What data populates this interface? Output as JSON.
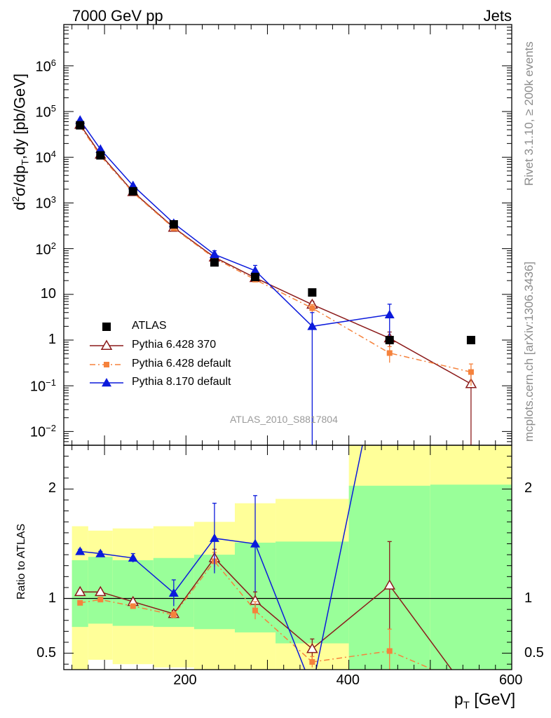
{
  "header": {
    "left_title": "7000 GeV pp",
    "right_title": "Jets",
    "watermark": "ATLAS_2010_S8817804",
    "side_top": "Rivet 3.1.10, ≥ 200k events",
    "side_bottom": "mcplots.cern.ch [arXiv:1306.3436]"
  },
  "chart_data": [
    {
      "type": "scatter",
      "panel": "main",
      "ylabel": "d²σ/dp_T,dy [pb/GeV]",
      "yscale": "log",
      "ylim": [
        0.005,
        8000000
      ],
      "xlim": [
        50,
        600
      ],
      "legend_position": "lower-left",
      "series": [
        {
          "name": "ATLAS",
          "marker": "square",
          "color": "#000000",
          "points": [
            {
              "x": 70,
              "y": 50000
            },
            {
              "x": 95,
              "y": 11000
            },
            {
              "x": 135,
              "y": 1800
            },
            {
              "x": 185,
              "y": 340
            },
            {
              "x": 235,
              "y": 50
            },
            {
              "x": 285,
              "y": 24
            },
            {
              "x": 355,
              "y": 11
            },
            {
              "x": 450,
              "y": 1.0
            },
            {
              "x": 550,
              "y": 1.0
            }
          ]
        },
        {
          "name": "Pythia 6.428 370",
          "marker": "open-triangle",
          "color": "#8b1a1a",
          "points": [
            {
              "x": 70,
              "y": 52000,
              "err": 1500
            },
            {
              "x": 95,
              "y": 11500,
              "err": 400
            },
            {
              "x": 135,
              "y": 1750,
              "err": 70
            },
            {
              "x": 185,
              "y": 290,
              "err": 12
            },
            {
              "x": 235,
              "y": 65,
              "err": 5
            },
            {
              "x": 285,
              "y": 23,
              "err": 2
            },
            {
              "x": 355,
              "y": 6,
              "err": 1
            },
            {
              "x": 450,
              "y": 1.1,
              "err": 0.4
            },
            {
              "x": 550,
              "y": 0.11,
              "err": 0.105
            }
          ]
        },
        {
          "name": "Pythia 6.428 default",
          "marker": "square-small",
          "color": "#f5823c",
          "points": [
            {
              "x": 70,
              "y": 48000,
              "err": 1500
            },
            {
              "x": 95,
              "y": 10800,
              "err": 350
            },
            {
              "x": 135,
              "y": 1680,
              "err": 60
            },
            {
              "x": 185,
              "y": 280,
              "err": 12
            },
            {
              "x": 235,
              "y": 62,
              "err": 5
            },
            {
              "x": 285,
              "y": 21,
              "err": 2
            },
            {
              "x": 355,
              "y": 5,
              "err": 1
            },
            {
              "x": 450,
              "y": 0.52,
              "err": 0.2
            },
            {
              "x": 550,
              "y": 0.2,
              "err": 0.1
            }
          ]
        },
        {
          "name": "Pythia 8.170 default",
          "marker": "filled-triangle",
          "color": "#0b1adc",
          "points": [
            {
              "x": 70,
              "y": 65000,
              "err": 2000
            },
            {
              "x": 95,
              "y": 15000,
              "err": 500
            },
            {
              "x": 135,
              "y": 2400,
              "err": 100
            },
            {
              "x": 185,
              "y": 360,
              "err": 40
            },
            {
              "x": 235,
              "y": 75,
              "err": 15
            },
            {
              "x": 285,
              "y": 33,
              "err": 10
            },
            {
              "x": 355,
              "y": 2,
              "err": 1.995
            },
            {
              "x": 450,
              "y": 3.6,
              "err": 2.5
            }
          ]
        }
      ]
    },
    {
      "type": "line",
      "panel": "ratio",
      "ylabel": "Ratio to ATLAS",
      "xlabel": "p_T [GeV]",
      "ylim": [
        0.35,
        2.4
      ],
      "xlim": [
        50,
        600
      ],
      "reference_line": 1,
      "band_bins": [
        {
          "x0": 60,
          "x1": 80,
          "green": [
            0.74,
            1.35
          ],
          "yellow": [
            0.35,
            1.66
          ]
        },
        {
          "x0": 80,
          "x1": 110,
          "green": [
            0.77,
            1.38
          ],
          "yellow": [
            0.44,
            1.62
          ]
        },
        {
          "x0": 110,
          "x1": 160,
          "green": [
            0.75,
            1.35
          ],
          "yellow": [
            0.4,
            1.64
          ]
        },
        {
          "x0": 160,
          "x1": 210,
          "green": [
            0.74,
            1.37
          ],
          "yellow": [
            0.37,
            1.66
          ]
        },
        {
          "x0": 210,
          "x1": 260,
          "green": [
            0.72,
            1.4
          ],
          "yellow": [
            0.35,
            1.7
          ]
        },
        {
          "x0": 260,
          "x1": 310,
          "green": [
            0.69,
            1.51
          ],
          "yellow": [
            0.35,
            1.87
          ]
        },
        {
          "x0": 310,
          "x1": 400,
          "green": [
            0.59,
            1.52
          ],
          "yellow": [
            0.35,
            1.91
          ]
        },
        {
          "x0": 400,
          "x1": 500,
          "green": [
            0.35,
            2.03
          ],
          "yellow": [
            0.35,
            2.4
          ]
        },
        {
          "x0": 500,
          "x1": 600,
          "green": [
            0.35,
            2.04
          ],
          "yellow": [
            0.35,
            2.4
          ]
        }
      ],
      "series": [
        {
          "name": "Pythia 6.428 370",
          "marker": "open-triangle",
          "color": "#8b1a1a",
          "points": [
            {
              "x": 70,
              "y": 1.06,
              "err": 0.02
            },
            {
              "x": 95,
              "y": 1.06,
              "err": 0.02
            },
            {
              "x": 135,
              "y": 0.97,
              "err": 0.02
            },
            {
              "x": 185,
              "y": 0.86,
              "err": 0.03
            },
            {
              "x": 235,
              "y": 1.37,
              "err": 0.08
            },
            {
              "x": 285,
              "y": 0.98,
              "err": 0.08
            },
            {
              "x": 355,
              "y": 0.54,
              "err": 0.09
            },
            {
              "x": 450,
              "y": 1.12,
              "err": 0.4
            },
            {
              "x": 550,
              "y": 0.11
            }
          ]
        },
        {
          "name": "Pythia 6.428 default",
          "marker": "square-small",
          "color": "#f5823c",
          "points": [
            {
              "x": 70,
              "y": 0.96,
              "err": 0.02
            },
            {
              "x": 95,
              "y": 0.99,
              "err": 0.02
            },
            {
              "x": 135,
              "y": 0.93,
              "err": 0.02
            },
            {
              "x": 185,
              "y": 0.85,
              "err": 0.03
            },
            {
              "x": 235,
              "y": 1.34,
              "err": 0.08
            },
            {
              "x": 285,
              "y": 0.89,
              "err": 0.08
            },
            {
              "x": 355,
              "y": 0.42,
              "err": 0.05
            },
            {
              "x": 450,
              "y": 0.52,
              "err": 0.2
            },
            {
              "x": 550,
              "y": 0.2
            }
          ]
        },
        {
          "name": "Pythia 8.170 default",
          "marker": "filled-triangle",
          "color": "#0b1adc",
          "points": [
            {
              "x": 70,
              "y": 1.43,
              "err": 0.02
            },
            {
              "x": 95,
              "y": 1.41,
              "err": 0.02
            },
            {
              "x": 135,
              "y": 1.37,
              "err": 0.04
            },
            {
              "x": 185,
              "y": 1.05,
              "err": 0.12
            },
            {
              "x": 235,
              "y": 1.55,
              "err": 0.32
            },
            {
              "x": 285,
              "y": 1.5,
              "err": 0.44
            },
            {
              "x": 355,
              "y": 0.18
            },
            {
              "x": 450,
              "y": 3.6
            }
          ]
        }
      ]
    }
  ],
  "axes": {
    "x_ticks": [
      "200",
      "400",
      "600"
    ],
    "main_y_ticks": [
      {
        "base": "10",
        "exp": "6"
      },
      {
        "base": "10",
        "exp": "5"
      },
      {
        "base": "10",
        "exp": "4"
      },
      {
        "base": "10",
        "exp": "3"
      },
      {
        "base": "10",
        "exp": "2"
      },
      {
        "base": "10",
        "exp": ""
      },
      {
        "base": "1",
        "exp": ""
      },
      {
        "base": "10",
        "exp": "−1"
      },
      {
        "base": "10",
        "exp": "−2"
      }
    ],
    "ratio_y_ticks": [
      "2",
      "1",
      "0.5"
    ],
    "ylabel_main": {
      "pre": "d",
      "sup2": "2",
      "mid": "σ/dp",
      "sub": "T",
      "post": ",dy [pb/GeV]"
    },
    "ylabel_ratio": "Ratio to ATLAS",
    "xlabel": {
      "main": "p",
      "sub": "T",
      "post": " [GeV]"
    }
  },
  "legend": {
    "entries": [
      "ATLAS",
      "Pythia 6.428 370",
      "Pythia 6.428 default",
      "Pythia 8.170 default"
    ]
  }
}
